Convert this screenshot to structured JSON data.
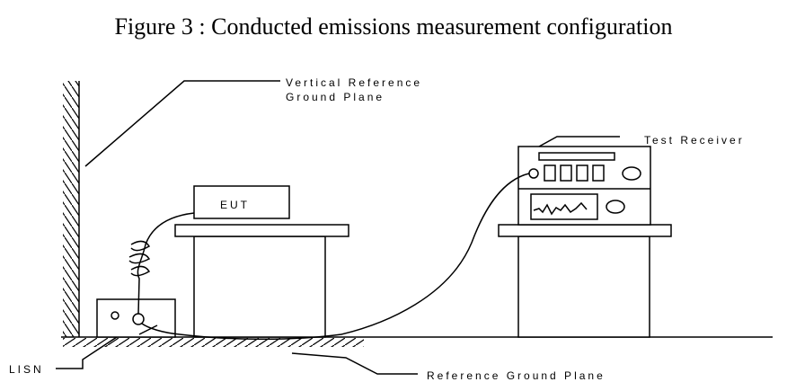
{
  "figure": {
    "title": "Figure 3 : Conducted emissions measurement configuration"
  },
  "labels": {
    "vertical_reference": [
      "Vertical Reference",
      "Ground Plane"
    ],
    "test_receiver": "Test Receiver",
    "eut": "EUT",
    "lisn": "LISN",
    "reference_ground_plane": "Reference Ground Plane"
  }
}
